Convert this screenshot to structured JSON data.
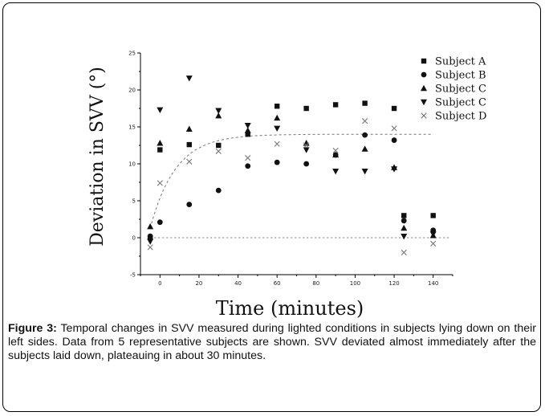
{
  "figure": {
    "caption_label": "Figure 3:",
    "caption_text": "Temporal changes in SVV measured during lighted conditions in subjects lying down on their left sides. Data from 5 representative subjects are shown. SVV deviated almost immediately after the subjects laid down, plateauing in about 30 minutes."
  },
  "chart_data": {
    "type": "scatter",
    "title": "",
    "xlabel": "Time (minutes)",
    "ylabel": "Deviation in SVV (°)",
    "xlim": [
      -10,
      150
    ],
    "ylim": [
      -5,
      25
    ],
    "xticks": [
      0,
      20,
      40,
      60,
      80,
      100,
      120,
      140
    ],
    "yticks": [
      -5,
      0,
      5,
      10,
      15,
      20,
      25
    ],
    "grid": false,
    "legend_position": "top-right",
    "series": [
      {
        "name": "Subject A",
        "marker": "square",
        "color": "#111111",
        "x": [
          -5,
          0,
          15,
          30,
          45,
          60,
          75,
          90,
          105,
          120,
          125,
          140
        ],
        "y": [
          0,
          11.9,
          12.6,
          12.5,
          14,
          17.8,
          17.5,
          18,
          18.2,
          17.5,
          3,
          3
        ]
      },
      {
        "name": "Subject B",
        "marker": "circle",
        "color": "#111111",
        "x": [
          -5,
          0,
          15,
          30,
          45,
          60,
          75,
          90,
          105,
          120,
          125,
          140
        ],
        "y": [
          0.2,
          2.1,
          4.5,
          6.4,
          9.7,
          10.2,
          10,
          11.2,
          13.9,
          13.2,
          2.3,
          1
        ]
      },
      {
        "name": "Subject C",
        "marker": "triangle-up",
        "color": "#111111",
        "x": [
          -5,
          0,
          15,
          30,
          45,
          60,
          75,
          90,
          105,
          120,
          125,
          140
        ],
        "y": [
          1.5,
          12.8,
          14.7,
          16.5,
          14.5,
          16.2,
          12.8,
          11.2,
          12,
          9.5,
          1.3,
          0.3
        ]
      },
      {
        "name": "Subject C",
        "marker": "triangle-down",
        "color": "#111111",
        "x": [
          -5,
          0,
          15,
          30,
          45,
          60,
          75,
          90,
          105,
          120,
          125,
          140
        ],
        "y": [
          -0.5,
          17.3,
          21.6,
          17.2,
          15.2,
          14.8,
          11.9,
          9,
          9,
          9.3,
          0.2,
          0.5
        ]
      },
      {
        "name": "Subject D",
        "marker": "x",
        "color": "#777777",
        "x": [
          -5,
          0,
          15,
          30,
          45,
          60,
          75,
          90,
          105,
          120,
          125,
          140
        ],
        "y": [
          -1.3,
          7.4,
          10.3,
          11.7,
          10.8,
          12.7,
          12.5,
          11.8,
          15.8,
          14.8,
          -2,
          -0.8
        ]
      }
    ],
    "fit_curve": {
      "style": "dotted",
      "color": "#777777",
      "plateau": 14,
      "start": 1.3,
      "tau_minutes": 13,
      "x_range": [
        -5,
        140
      ]
    },
    "zero_line": {
      "style": "dotted",
      "color": "#777777",
      "y": 0
    }
  }
}
